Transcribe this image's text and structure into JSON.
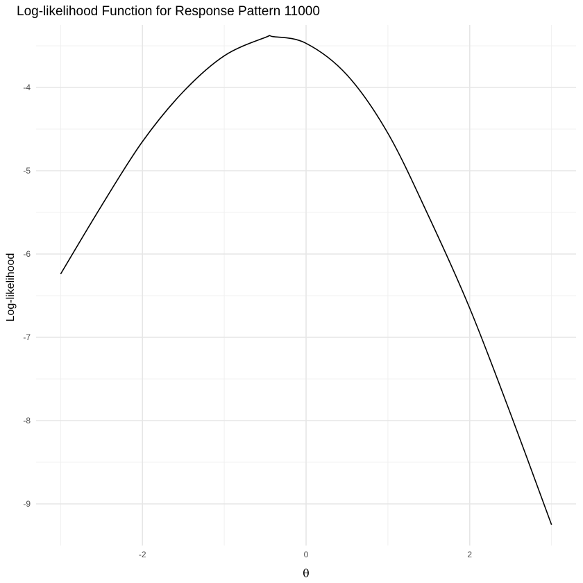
{
  "chart_data": {
    "type": "line",
    "title": "Log-likelihood Function for Response Pattern 11000",
    "xlabel": "θ",
    "ylabel": "Log-likelihood",
    "xlim": [
      -3.3,
      3.3
    ],
    "ylim": [
      -9.5,
      -3.25
    ],
    "x_ticks": [
      -2,
      0,
      2
    ],
    "x_tick_labels": [
      "-2",
      "0",
      "2"
    ],
    "y_ticks": [
      -9,
      -8,
      -7,
      -6,
      -5,
      -4
    ],
    "y_tick_labels": [
      "-9",
      "-8",
      "-7",
      "-6",
      "-5",
      "-4"
    ],
    "grid": true,
    "series": [
      {
        "color": "#000000",
        "x": [
          -3.0,
          -2.5,
          -2.0,
          -1.5,
          -1.0,
          -0.5,
          -0.4,
          0.0,
          0.5,
          1.0,
          1.5,
          2.0,
          2.5,
          3.0
        ],
        "y": [
          -6.24,
          -5.42,
          -4.65,
          -4.05,
          -3.62,
          -3.4,
          -3.39,
          -3.47,
          -3.85,
          -4.55,
          -5.55,
          -6.65,
          -7.92,
          -9.25
        ]
      }
    ]
  }
}
